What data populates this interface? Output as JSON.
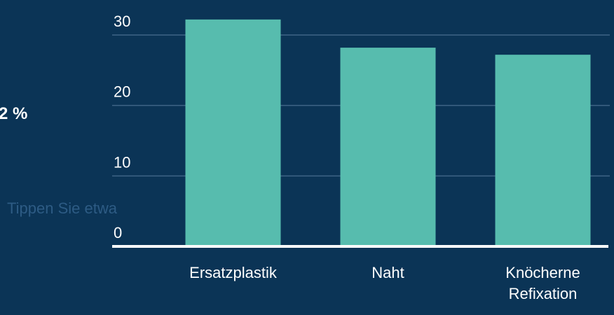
{
  "annotations": [
    "2 %",
    "Tippen Sie etwa"
  ],
  "chart_data": {
    "type": "bar",
    "categories": [
      "Ersatzplastik",
      "Naht",
      "Knöcherne Refixation"
    ],
    "values": [
      32.2,
      28.2,
      27.2
    ],
    "color": "#57bcae",
    "ylim": [
      0,
      30
    ],
    "yticks": [
      0,
      10,
      20,
      30
    ],
    "grid": true
  }
}
